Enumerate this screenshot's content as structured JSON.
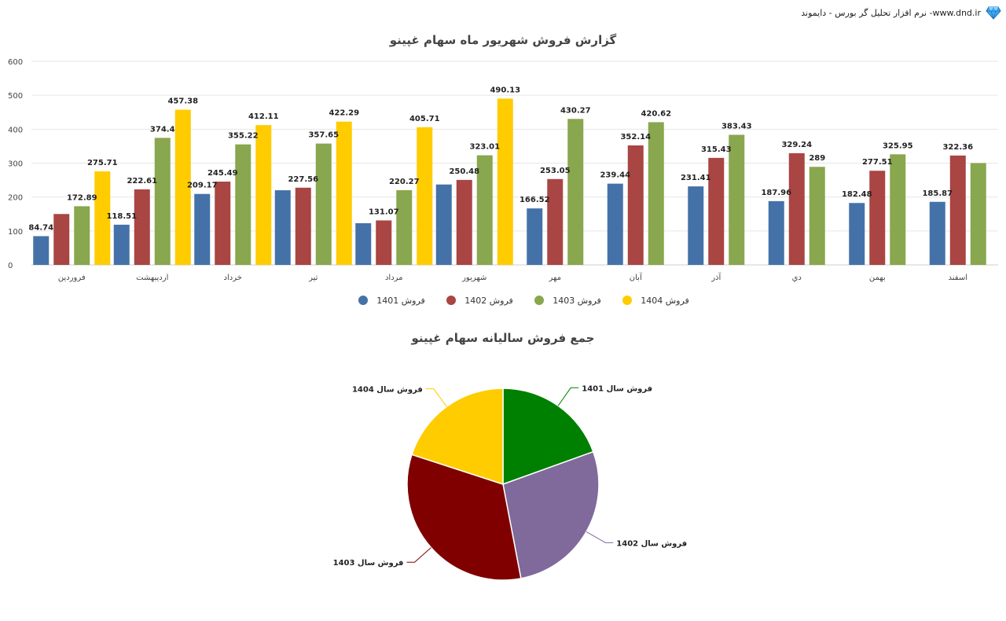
{
  "header": {
    "text": "نرم افزار تحلیل گر بورس - دایموند -www.dnd.ir",
    "logo_icon": "diamond-icon"
  },
  "chart_data": [
    {
      "type": "bar",
      "title": "گزارش فروش شهریور ماه سهام غپینو",
      "categories": [
        "فروردین",
        "اردیبهشت",
        "خرداد",
        "تیر",
        "مرداد",
        "شهریور",
        "مهر",
        "آبان",
        "آذر",
        "دي",
        "بهمن",
        "اسفند"
      ],
      "ylim": [
        0,
        600
      ],
      "yticks": [
        0,
        100,
        200,
        300,
        400,
        500,
        600
      ],
      "grid": true,
      "legend_position": "bottom",
      "series": [
        {
          "name": "فروش 1401",
          "color": "#4472a8",
          "values": [
            84.74,
            118.51,
            209.17,
            220,
            123,
            237,
            166.52,
            239.44,
            231.41,
            187.96,
            182.48,
            185.87
          ],
          "labels": [
            "84.74",
            "118.51",
            "209.17",
            "",
            "",
            "",
            "166.52",
            "239.44",
            "231.41",
            "187.96",
            "182.48",
            "185.87"
          ]
        },
        {
          "name": "فروش 1402",
          "color": "#a94543",
          "values": [
            150,
            222.61,
            245.49,
            227.56,
            131.07,
            250.48,
            253.05,
            352.14,
            315.43,
            329.24,
            277.51,
            322.36
          ],
          "labels": [
            "",
            "222.61",
            "245.49",
            "227.56",
            "131.07",
            "250.48",
            "253.05",
            "352.14",
            "315.43",
            "329.24",
            "277.51",
            "322.36"
          ]
        },
        {
          "name": "فروش 1403",
          "color": "#88a74e",
          "values": [
            172.89,
            374.4,
            355.22,
            357.65,
            220.27,
            323.01,
            430.27,
            420.62,
            383.43,
            289,
            325.95,
            300
          ],
          "labels": [
            "172.89",
            "374.4",
            "355.22",
            "357.65",
            "220.27",
            "323.01",
            "430.27",
            "420.62",
            "383.43",
            "289",
            "325.95",
            ""
          ]
        },
        {
          "name": "فروش 1404",
          "color": "#ffcc00",
          "values": [
            275.71,
            457.38,
            412.11,
            422.29,
            405.71,
            490.13,
            null,
            null,
            null,
            null,
            null,
            null
          ],
          "labels": [
            "275.71",
            "457.38",
            "412.11",
            "422.29",
            "405.71",
            "490.13",
            "",
            "",
            "",
            "",
            "",
            ""
          ]
        }
      ]
    },
    {
      "type": "pie",
      "title": "جمع فروش سالیانه سهام غپینو",
      "slices": [
        {
          "label": "فروش سال 1401",
          "value": 19.5,
          "color": "#008000"
        },
        {
          "label": "فروش سال 1402",
          "value": 27.5,
          "color": "#80699b"
        },
        {
          "label": "فروش سال 1403",
          "value": 33.0,
          "color": "#800000"
        },
        {
          "label": "فروش سال 1404",
          "value": 20.0,
          "color": "#ffcc00"
        }
      ]
    }
  ]
}
